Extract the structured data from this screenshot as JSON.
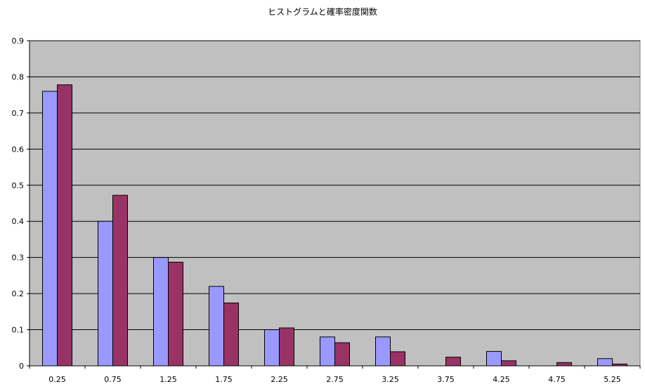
{
  "chart_data": {
    "type": "bar",
    "title": "ヒストグラムと確率密度関数",
    "xlabel": "",
    "ylabel": "",
    "categories": [
      "0.25",
      "0.75",
      "1.25",
      "1.75",
      "2.25",
      "2.75",
      "3.25",
      "3.75",
      "4.25",
      "4.75",
      "5.25"
    ],
    "series": [
      {
        "values": [
          0.76,
          0.4,
          0.3,
          0.22,
          0.1,
          0.08,
          0.08,
          0.0,
          0.04,
          0.0,
          0.02
        ],
        "color": "#9999ff"
      },
      {
        "values": [
          0.778,
          0.472,
          0.287,
          0.174,
          0.105,
          0.064,
          0.039,
          0.024,
          0.014,
          0.009,
          0.005
        ],
        "color": "#993366"
      }
    ],
    "ylim": [
      0,
      0.9
    ],
    "yticks": [
      "0",
      "0.1",
      "0.2",
      "0.3",
      "0.4",
      "0.5",
      "0.6",
      "0.7",
      "0.8",
      "0.9"
    ],
    "grid": true,
    "legend": "none",
    "plot_background": "#c0c0c0"
  }
}
